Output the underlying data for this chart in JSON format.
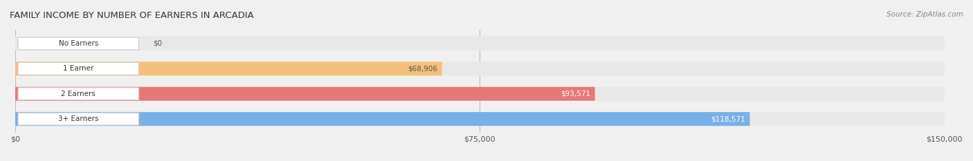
{
  "title": "FAMILY INCOME BY NUMBER OF EARNERS IN ARCADIA",
  "source": "Source: ZipAtlas.com",
  "categories": [
    "No Earners",
    "1 Earner",
    "2 Earners",
    "3+ Earners"
  ],
  "values": [
    0,
    68906,
    93571,
    118571
  ],
  "bar_colors": [
    "#f08080",
    "#f5c07a",
    "#e87878",
    "#7ab0e8"
  ],
  "label_colors": [
    "#555555",
    "#555555",
    "#ffffff",
    "#ffffff"
  ],
  "xlim": [
    0,
    150000
  ],
  "xticks": [
    0,
    75000,
    150000
  ],
  "xtick_labels": [
    "$0",
    "$75,000",
    "$150,000"
  ],
  "bg_color": "#f0f0f0",
  "bar_bg_color": "#e8e8e8",
  "value_labels": [
    "$0",
    "$68,906",
    "$93,571",
    "$118,571"
  ],
  "bar_height": 0.55,
  "label_box_color": "#ffffff",
  "label_box_edge": "#cccccc"
}
